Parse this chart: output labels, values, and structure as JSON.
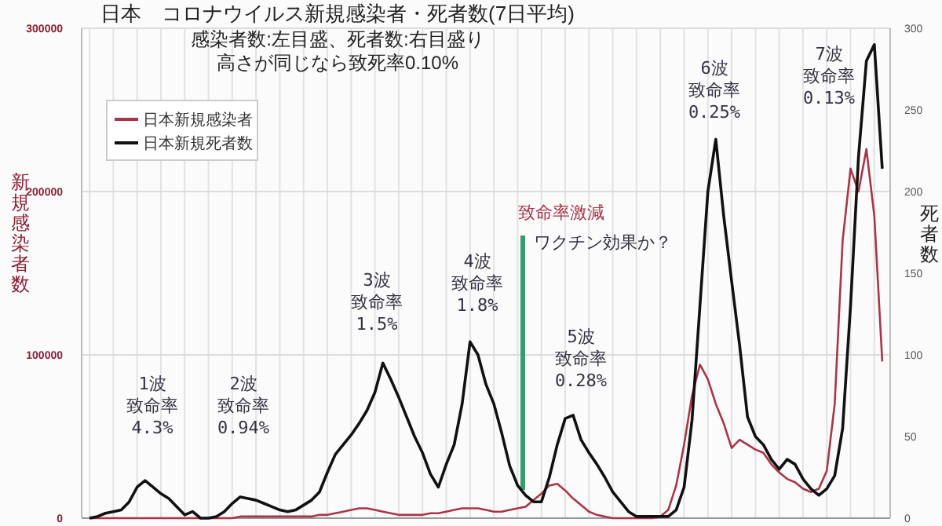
{
  "chart_data": {
    "type": "line",
    "title": "日本　コロナウイルス新規感染者・死者数(7日平均)",
    "subtitle": "感染者数:左目盛、死者数:右目盛り",
    "ylabel": "新規感染者数",
    "y2label": "死者数",
    "categories": [
      null,
      null,
      null,
      null,
      null,
      null,
      null,
      null,
      null,
      null,
      null,
      null,
      null,
      null,
      null,
      null,
      null,
      null,
      null,
      null,
      null,
      null,
      null,
      null,
      null,
      null,
      null,
      null,
      null,
      null,
      null,
      null,
      null,
      null,
      null,
      null,
      null,
      null,
      null,
      null,
      null,
      null,
      null,
      null,
      null,
      null,
      null,
      null,
      null,
      null,
      null,
      null,
      null,
      null,
      null,
      null,
      null,
      null,
      null,
      null,
      null,
      null,
      null,
      null,
      null,
      null,
      null,
      null,
      null,
      null,
      null,
      null,
      null,
      null,
      null,
      null,
      null,
      null,
      null,
      null,
      null,
      null,
      null,
      null,
      null,
      null,
      null,
      null,
      null,
      null,
      null,
      null,
      null,
      null,
      null,
      null,
      null,
      null,
      null,
      null,
      null
    ],
    "series": [
      {
        "name": "日本新規感染者",
        "color": "#a8354a",
        "values": [
          0,
          0,
          0,
          0,
          0,
          0,
          0,
          0,
          0,
          0,
          0,
          0,
          0,
          0,
          0,
          0,
          0,
          0,
          0,
          1000,
          1000,
          1000,
          1000,
          1000,
          1000,
          1000,
          1000,
          1000,
          1000,
          2000,
          2000,
          3000,
          4000,
          5000,
          6000,
          6000,
          5000,
          4000,
          3000,
          2000,
          2000,
          2000,
          2000,
          3000,
          3000,
          4000,
          5000,
          6000,
          6000,
          6000,
          5000,
          4000,
          4000,
          5000,
          6000,
          7000,
          11000,
          15000,
          20000,
          21000,
          17000,
          12000,
          8000,
          4000,
          2000,
          1000,
          0,
          0,
          0,
          0,
          0,
          0,
          1000,
          5000,
          20000,
          45000,
          75000,
          94000,
          85000,
          70000,
          58000,
          43000,
          48000,
          45000,
          42000,
          40000,
          33000,
          28000,
          24000,
          22000,
          18000,
          16000,
          18000,
          29000,
          70000,
          170000,
          214000,
          200000,
          226000,
          185000,
          96000
        ]
      },
      {
        "name": "日本新規死者数",
        "color": "#111111",
        "axis": "y2",
        "values": [
          0,
          1,
          3,
          4,
          5,
          10,
          19,
          23,
          19,
          15,
          12,
          7,
          2,
          4,
          0,
          0,
          1,
          4,
          9,
          13,
          12,
          11,
          9,
          7,
          5,
          4,
          5,
          8,
          11,
          16,
          28,
          39,
          45,
          51,
          58,
          66,
          77,
          95,
          85,
          74,
          62,
          50,
          40,
          27,
          19,
          33,
          45,
          70,
          108,
          100,
          82,
          70,
          52,
          32,
          20,
          14,
          10,
          10,
          25,
          45,
          61,
          63,
          48,
          40,
          33,
          25,
          16,
          10,
          4,
          1,
          1,
          1,
          1,
          1,
          5,
          19,
          60,
          130,
          200,
          232,
          185,
          145,
          106,
          62,
          50,
          45,
          36,
          30,
          36,
          33,
          24,
          18,
          14,
          18,
          26,
          55,
          130,
          221,
          280,
          290,
          214
        ]
      }
    ],
    "ylim": [
      0,
      300000
    ],
    "yticks": [
      0,
      100000,
      200000,
      300000
    ],
    "y2lim": [
      0,
      300
    ],
    "y2ticks": [
      0,
      50,
      100,
      150,
      200,
      250,
      300
    ],
    "grid": true,
    "legend": "top left",
    "annotations": [
      "高さが同じなら致死率0.10%",
      "1波",
      "致命率",
      "4.3%",
      "2波",
      "致命率",
      "0.94%",
      "3波",
      "致命率",
      "1.5%",
      "4波",
      "致命率",
      "1.8%",
      "5波",
      "致命率",
      "0.28%",
      "6波",
      "致命率",
      "0.25%",
      "7波",
      "致命率",
      "0.13%",
      "致命率激減",
      "ワクチン効果か？"
    ]
  }
}
